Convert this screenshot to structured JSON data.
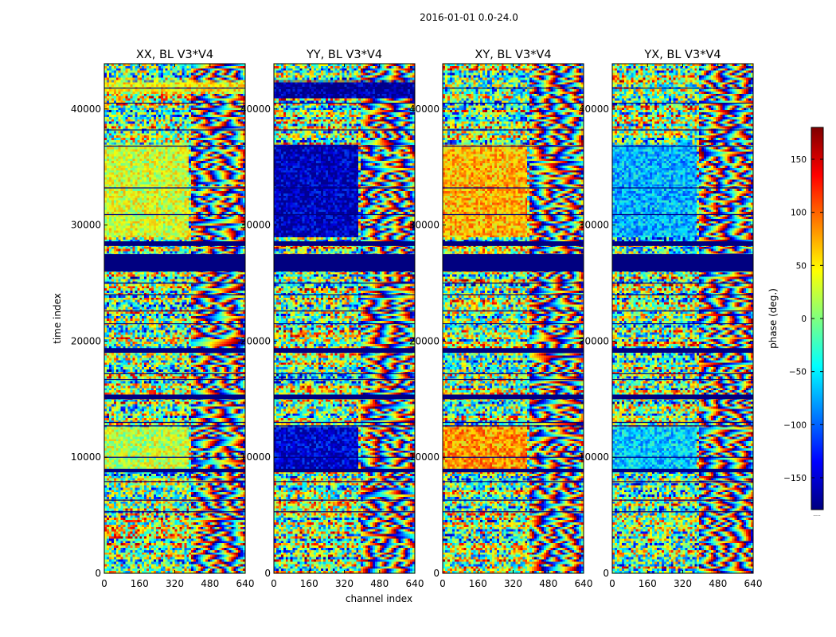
{
  "chart_data": {
    "type": "heatmap",
    "suptitle": "2016-01-01 0.0-24.0",
    "xlabel": "channel index",
    "ylabel": "time index",
    "xlim": [
      0,
      640
    ],
    "ylim": [
      0,
      43900
    ],
    "xticks": [
      0,
      160,
      320,
      480,
      640
    ],
    "yticks": [
      0,
      10000,
      20000,
      30000,
      40000
    ],
    "colormap": "jet",
    "colorbar": {
      "label": "phase (deg.)",
      "range": [
        -180,
        180
      ],
      "ticks": [
        150,
        100,
        50,
        0,
        -50,
        -100,
        -150
      ],
      "tick_labels": [
        "150",
        "100",
        "50",
        "0",
        "−50",
        "−100",
        "−150"
      ],
      "note": "....."
    },
    "flagged_value": -180,
    "panels": [
      {
        "product": "XX",
        "title": "XX, BL V3*V4",
        "dominant_blocks": [
          {
            "t_start": 9000,
            "t_end": 12700,
            "ch_end": 380,
            "phase": 20
          },
          {
            "t_start": 29000,
            "t_end": 37000,
            "ch_end": 380,
            "phase": 30
          },
          {
            "t_start": 41500,
            "t_end": 42500,
            "ch_end": 640,
            "phase": 45
          }
        ]
      },
      {
        "product": "YY",
        "title": "YY, BL V3*V4",
        "dominant_blocks": [
          {
            "t_start": 9000,
            "t_end": 12700,
            "ch_end": 380,
            "phase": -150
          },
          {
            "t_start": 29000,
            "t_end": 37000,
            "ch_end": 380,
            "phase": -160
          },
          {
            "t_start": 41000,
            "t_end": 42500,
            "ch_end": 640,
            "phase": -170
          }
        ]
      },
      {
        "product": "XY",
        "title": "XY, BL V3*V4",
        "dominant_blocks": [
          {
            "t_start": 9000,
            "t_end": 12700,
            "ch_end": 380,
            "phase": 80
          },
          {
            "t_start": 29000,
            "t_end": 37000,
            "ch_end": 380,
            "phase": 70
          }
        ]
      },
      {
        "product": "YX",
        "title": "YX, BL V3*V4",
        "dominant_blocks": [
          {
            "t_start": 9000,
            "t_end": 12700,
            "ch_end": 380,
            "phase": -60
          },
          {
            "t_start": 29000,
            "t_end": 37000,
            "ch_end": 380,
            "phase": -70
          }
        ]
      }
    ],
    "flag_bands": [
      {
        "t_start": 26000,
        "t_end": 27500
      },
      {
        "t_start": 28200,
        "t_end": 28600
      },
      {
        "t_start": 19000,
        "t_end": 19400
      },
      {
        "t_start": 15000,
        "t_end": 15400
      },
      {
        "t_start": 8700,
        "t_end": 9000
      }
    ],
    "flag_lines": [
      5300,
      6300,
      7900,
      10000,
      12700,
      13000,
      16700,
      17200,
      21500,
      22600,
      24000,
      25000,
      30900,
      33200,
      36800,
      38200,
      40500,
      41800
    ]
  }
}
